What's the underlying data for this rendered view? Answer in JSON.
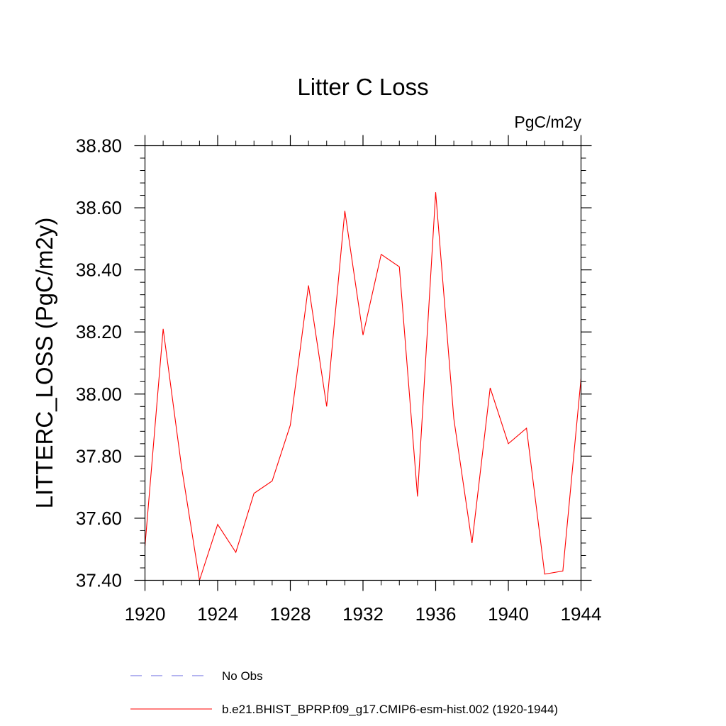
{
  "chart_data": {
    "type": "line",
    "title": "Litter C Loss",
    "units_label": "PgC/m2y",
    "ylabel": "LITTERC_LOSS  (PgC/m2y)",
    "xlabel": "",
    "xlim": [
      1920,
      1944
    ],
    "ylim": [
      37.4,
      38.8
    ],
    "x_ticks": [
      1920,
      1924,
      1928,
      1932,
      1936,
      1940,
      1944
    ],
    "x_tick_labels": [
      "1920",
      "1924",
      "1928",
      "1932",
      "1936",
      "1940",
      "1944"
    ],
    "y_ticks": [
      37.4,
      37.6,
      37.8,
      38.0,
      38.2,
      38.4,
      38.6,
      38.8
    ],
    "y_tick_labels": [
      "37.40",
      "37.60",
      "37.80",
      "38.00",
      "38.20",
      "38.40",
      "38.60",
      "38.80"
    ],
    "grid": false,
    "legend_position": "bottom",
    "series": [
      {
        "name": "b.e21.BHIST_BPRP.f09_g17.CMIP6-esm-hist.002 (1920-1944)",
        "color": "#ff0000",
        "x": [
          1920,
          1921,
          1922,
          1923,
          1924,
          1925,
          1926,
          1927,
          1928,
          1929,
          1930,
          1931,
          1932,
          1933,
          1934,
          1935,
          1936,
          1937,
          1938,
          1939,
          1940,
          1941,
          1942,
          1943,
          1944
        ],
        "values": [
          37.51,
          38.21,
          37.77,
          37.4,
          37.58,
          37.49,
          37.68,
          37.72,
          37.9,
          38.35,
          37.96,
          38.59,
          38.19,
          38.45,
          38.41,
          37.67,
          38.65,
          37.92,
          37.52,
          38.02,
          37.84,
          37.89,
          37.42,
          37.43,
          38.05
        ]
      }
    ],
    "legend": [
      {
        "label": "No Obs",
        "color": "#6a6ae0",
        "dash": "dashed"
      },
      {
        "label": "b.e21.BHIST_BPRP.f09_g17.CMIP6-esm-hist.002 (1920-1944)",
        "color": "#ff0000",
        "dash": "solid"
      }
    ]
  }
}
